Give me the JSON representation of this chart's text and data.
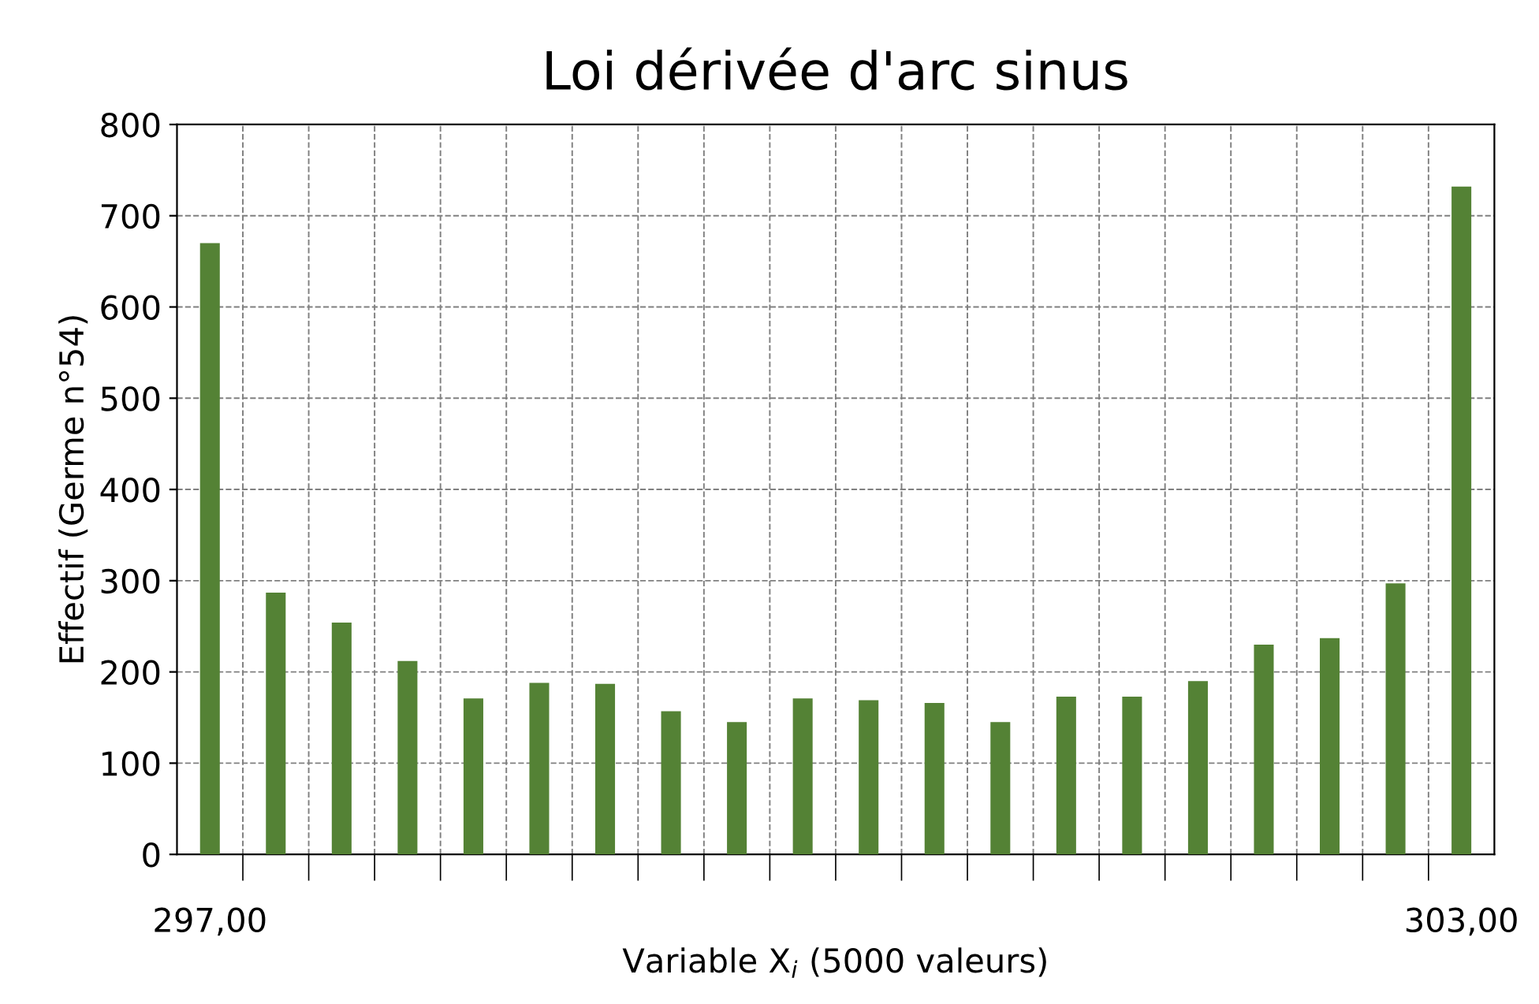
{
  "chart_data": {
    "type": "bar",
    "title": "Loi dérivée d'arc sinus",
    "xlabel": "Variable X$_{i}$ (5000 valeurs)",
    "ylabel": "Effectif (Germe n°54)",
    "categories": [
      "297,00",
      null,
      null,
      null,
      null,
      null,
      null,
      null,
      null,
      null,
      null,
      null,
      null,
      null,
      null,
      null,
      null,
      null,
      null,
      "303,00"
    ],
    "values": [
      670,
      287,
      254,
      212,
      171,
      188,
      187,
      157,
      145,
      171,
      169,
      166,
      145,
      173,
      173,
      190,
      230,
      237,
      297,
      732
    ],
    "color": "#548235",
    "ylim": [
      0,
      800
    ],
    "yticks": [
      0,
      100,
      200,
      300,
      400,
      500,
      600,
      700,
      800
    ],
    "grid": true
  }
}
